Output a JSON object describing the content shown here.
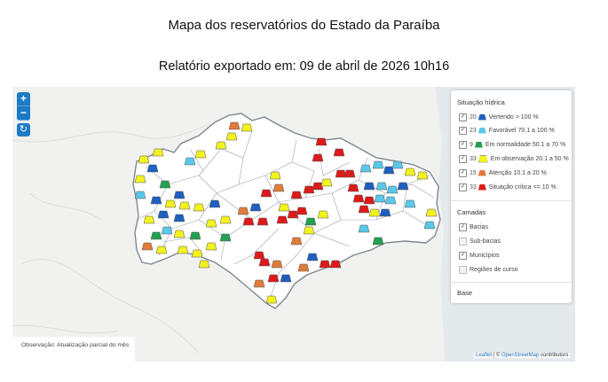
{
  "header": {
    "title": "Mapa dos reservatórios do Estado da Paraíba",
    "subtitle": "Relatório exportado em: 09 de abril de 2026 10h16"
  },
  "zoom": {
    "in_label": "+",
    "out_label": "−",
    "reset_label": "↻"
  },
  "legend": {
    "title": "Situação hídrica",
    "items": [
      {
        "count": "20",
        "label": "Vertendo > 100 %",
        "color": "#1f5fbf",
        "checked": true
      },
      {
        "count": "23",
        "label": "Favorável 70.1 a 100 %",
        "color": "#5ac8ea",
        "checked": true
      },
      {
        "count": "9",
        "label": "Em normalidade 50.1 a 70 %",
        "color": "#22a050",
        "checked": true
      },
      {
        "count": "33",
        "label": "Em observação 20.1 a 50 %",
        "color": "#f2f21e",
        "checked": true
      },
      {
        "count": "15",
        "label": "Atenção 10.1 a 20 %",
        "color": "#e07b3c",
        "checked": true
      },
      {
        "count": "33",
        "label": "Situação crítica <= 10 %",
        "color": "#dd1a1a",
        "checked": true
      }
    ]
  },
  "layers": {
    "title": "Camadas",
    "items": [
      {
        "label": "Bacias",
        "checked": true
      },
      {
        "label": "Sub-bacias",
        "checked": false
      },
      {
        "label": "Municípios",
        "checked": true
      },
      {
        "label": "Regiões de curso",
        "checked": false
      }
    ]
  },
  "base": {
    "title": "Base"
  },
  "observation": "Observação: Atualização parcial do mês",
  "attribution": {
    "leaflet": "Leaflet",
    "sep": " | © ",
    "osm": "OpenStreetMap",
    "suffix": " contributors"
  }
}
